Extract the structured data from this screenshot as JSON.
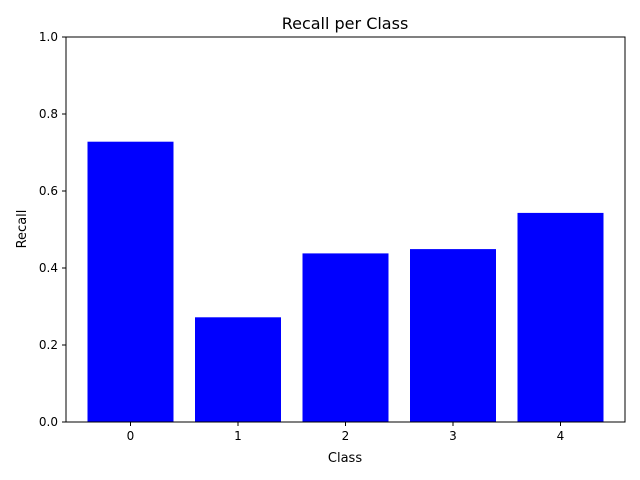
{
  "chart_data": {
    "type": "bar",
    "title": "Recall per Class",
    "xlabel": "Class",
    "ylabel": "Recall",
    "categories": [
      "0",
      "1",
      "2",
      "3",
      "4"
    ],
    "values": [
      0.728,
      0.272,
      0.438,
      0.449,
      0.543
    ],
    "ylim": [
      0,
      1
    ],
    "yticks": [
      "0.0",
      "0.2",
      "0.4",
      "0.6",
      "0.8",
      "1.0"
    ],
    "bar_color": "#0000ff",
    "grid": false,
    "legend": "none"
  }
}
